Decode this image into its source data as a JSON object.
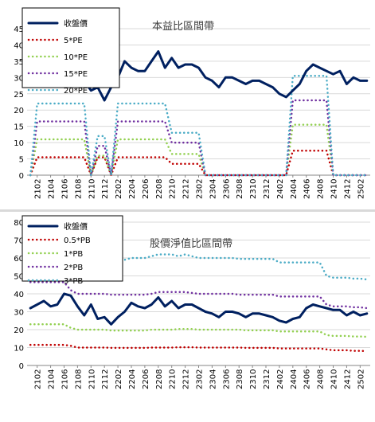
{
  "chart_data": [
    {
      "type": "line",
      "title": "本益比區間帶",
      "ylim": [
        0,
        45
      ],
      "yticks": [
        0,
        5,
        10,
        15,
        20,
        25,
        30,
        35,
        40,
        45
      ],
      "grid": true,
      "legend": "top-left",
      "x": [
        "2101",
        "2102",
        "2103",
        "2104",
        "2105",
        "2106",
        "2107",
        "2108",
        "2109",
        "2110",
        "2111",
        "2112",
        "2201",
        "2202",
        "2203",
        "2204",
        "2205",
        "2206",
        "2207",
        "2208",
        "2209",
        "2210",
        "2211",
        "2212",
        "2301",
        "2302",
        "2303",
        "2304",
        "2305",
        "2306",
        "2307",
        "2308",
        "2309",
        "2310",
        "2311",
        "2312",
        "2401",
        "2402",
        "2403",
        "2404",
        "2405",
        "2406",
        "2407",
        "2408",
        "2409",
        "2410",
        "2411",
        "2412",
        "2501",
        "2502",
        "2503"
      ],
      "xtick_labels": [
        "2102",
        "2104",
        "2106",
        "2108",
        "2110",
        "2112",
        "2202",
        "2204",
        "2206",
        "2208",
        "2210",
        "2212",
        "2302",
        "2304",
        "2306",
        "2308",
        "2310",
        "2312",
        "2402",
        "2404",
        "2406",
        "2408",
        "2410",
        "2412",
        "2502"
      ],
      "series": [
        {
          "name": "收盤價",
          "color": "#002060",
          "width": 3,
          "dash": "",
          "values": [
            30,
            31,
            33,
            31,
            31,
            33,
            38,
            33,
            29,
            26,
            27,
            23,
            27,
            30,
            35,
            33,
            32,
            32,
            35,
            38,
            33,
            36,
            33,
            34,
            34,
            33,
            30,
            29,
            27,
            30,
            30,
            29,
            28,
            29,
            29,
            28,
            27,
            25,
            24,
            26,
            28,
            32,
            34,
            33,
            32,
            31,
            32,
            28,
            30,
            29,
            29
          ]
        },
        {
          "name": "5*PE",
          "color": "#c00000",
          "width": 2.5,
          "dash": "0.1 5",
          "values": [
            0,
            5.5,
            5.5,
            5.5,
            5.5,
            5.5,
            5.5,
            5.5,
            5.5,
            0,
            5.5,
            5.5,
            0,
            5.5,
            5.5,
            5.5,
            5.5,
            5.5,
            5.5,
            5.5,
            5.5,
            3.5,
            3.5,
            3.5,
            3.5,
            3.5,
            0,
            0,
            0,
            0,
            0,
            0,
            0,
            0,
            0,
            0,
            0,
            0,
            0,
            7.5,
            7.5,
            7.5,
            7.5,
            7.5,
            7.5,
            0,
            0,
            0,
            0,
            0,
            0
          ]
        },
        {
          "name": "10*PE",
          "color": "#92d050",
          "width": 2.5,
          "dash": "0.1 5",
          "values": [
            0,
            11,
            11,
            11,
            11,
            11,
            11,
            11,
            11,
            0,
            6,
            6,
            0,
            11,
            11,
            11,
            11,
            11,
            11,
            11,
            11,
            6.5,
            6.5,
            6.5,
            6.5,
            6.5,
            0,
            0,
            0,
            0,
            0,
            0,
            0,
            0,
            0,
            0,
            0,
            0,
            0,
            15.5,
            15.5,
            15.5,
            15.5,
            15.5,
            15.5,
            0,
            0,
            0,
            0,
            0,
            0
          ]
        },
        {
          "name": "15*PE",
          "color": "#7030a0",
          "width": 2.5,
          "dash": "0.1 5",
          "values": [
            0,
            16.5,
            16.5,
            16.5,
            16.5,
            16.5,
            16.5,
            16.5,
            16.5,
            0,
            9,
            9,
            0,
            16.5,
            16.5,
            16.5,
            16.5,
            16.5,
            16.5,
            16.5,
            16.5,
            10,
            10,
            10,
            10,
            10,
            0,
            0,
            0,
            0,
            0,
            0,
            0,
            0,
            0,
            0,
            0,
            0,
            0,
            23,
            23,
            23,
            23,
            23,
            23,
            0,
            0,
            0,
            0,
            0,
            0
          ]
        },
        {
          "name": "20*PE",
          "color": "#4bacc6",
          "width": 2.5,
          "dash": "0.1 5",
          "values": [
            0,
            22,
            22,
            22,
            22,
            22,
            22,
            22,
            22,
            0,
            12,
            12,
            0,
            22,
            22,
            22,
            22,
            22,
            22,
            22,
            22,
            13,
            13,
            13,
            13,
            13,
            0,
            0,
            0,
            0,
            0,
            0,
            0,
            0,
            0,
            0,
            0,
            0,
            0,
            30.5,
            30.5,
            30.5,
            30.5,
            30.5,
            30.5,
            0,
            0,
            0,
            0,
            0,
            0
          ]
        }
      ]
    },
    {
      "type": "line",
      "title": "股價淨值比區間帶",
      "ylim": [
        0,
        80
      ],
      "yticks": [
        0,
        10,
        20,
        30,
        40,
        50,
        60,
        70,
        80
      ],
      "grid": true,
      "legend": "top-left",
      "x": [
        "2101",
        "2102",
        "2103",
        "2104",
        "2105",
        "2106",
        "2107",
        "2108",
        "2109",
        "2110",
        "2111",
        "2112",
        "2201",
        "2202",
        "2203",
        "2204",
        "2205",
        "2206",
        "2207",
        "2208",
        "2209",
        "2210",
        "2211",
        "2212",
        "2301",
        "2302",
        "2303",
        "2304",
        "2305",
        "2306",
        "2307",
        "2308",
        "2309",
        "2310",
        "2311",
        "2312",
        "2401",
        "2402",
        "2403",
        "2404",
        "2405",
        "2406",
        "2407",
        "2408",
        "2409",
        "2410",
        "2411",
        "2412",
        "2501",
        "2502",
        "2503"
      ],
      "xtick_labels": [
        "2102",
        "2104",
        "2106",
        "2108",
        "2110",
        "2112",
        "2202",
        "2204",
        "2206",
        "2208",
        "2210",
        "2212",
        "2302",
        "2304",
        "2306",
        "2308",
        "2310",
        "2312",
        "2402",
        "2404",
        "2406",
        "2408",
        "2410",
        "2412",
        "2502"
      ],
      "series": [
        {
          "name": "收盤價",
          "color": "#002060",
          "width": 3,
          "dash": "",
          "values": [
            32,
            34,
            36,
            33,
            34,
            40,
            39,
            33,
            28,
            34,
            26,
            27,
            23,
            27,
            30,
            35,
            33,
            32,
            34,
            38,
            33,
            36,
            32,
            34,
            34,
            32,
            30,
            29,
            27,
            30,
            30,
            29,
            27,
            29,
            29,
            28,
            27,
            25,
            24,
            26,
            27,
            32,
            34,
            33,
            32,
            31,
            31,
            28,
            30,
            28,
            29
          ]
        },
        {
          "name": "0.5*PB",
          "color": "#c00000",
          "width": 2.5,
          "dash": "0.1 5",
          "values": [
            11.5,
            11.5,
            11.5,
            11.5,
            11.5,
            11.5,
            11,
            10,
            10,
            10,
            10,
            10,
            9.8,
            9.8,
            9.8,
            9.8,
            9.8,
            9.8,
            10,
            10,
            10,
            10,
            10.2,
            10.2,
            10.2,
            10,
            10,
            10,
            10,
            10,
            10,
            10,
            9.8,
            9.8,
            9.8,
            9.8,
            9.8,
            9.5,
            9.5,
            9.5,
            9.5,
            9.5,
            9.5,
            9.5,
            9,
            8.5,
            8.5,
            8.5,
            8.2,
            8.2,
            8
          ]
        },
        {
          "name": "1*PB",
          "color": "#92d050",
          "width": 2.5,
          "dash": "0.1 5",
          "values": [
            23,
            23,
            23,
            23,
            23,
            23,
            21,
            20,
            20,
            20,
            20,
            20,
            19.5,
            19.5,
            19.5,
            19.5,
            19.5,
            19.5,
            20,
            20,
            20,
            20,
            20.3,
            20.3,
            20.3,
            20,
            20,
            20,
            20,
            20,
            20,
            20,
            19.6,
            19.6,
            19.6,
            19.6,
            19.6,
            19,
            19,
            19,
            19,
            19,
            19,
            19,
            17,
            16.5,
            16.5,
            16.5,
            16.2,
            16.2,
            16
          ]
        },
        {
          "name": "2*PB",
          "color": "#7030a0",
          "width": 2.5,
          "dash": "0.1 5",
          "values": [
            46.5,
            46.5,
            46.5,
            46.5,
            46.5,
            46.5,
            42,
            40,
            40,
            40,
            40,
            40,
            39.5,
            39.5,
            39.5,
            39.5,
            39.5,
            39.5,
            40,
            41,
            41,
            41,
            41,
            41,
            40.5,
            40,
            40,
            40,
            40,
            40,
            40,
            39.5,
            39.5,
            39.5,
            39.5,
            39.5,
            39.5,
            38.5,
            38.5,
            38.5,
            38.5,
            38.5,
            38.5,
            38.5,
            34,
            33,
            33,
            33,
            32.5,
            32.5,
            32
          ]
        },
        {
          "name": "3*PB",
          "color": "#4bacc6",
          "width": 2.5,
          "dash": "0.1 5",
          "values": [
            64,
            64,
            64,
            65,
            64,
            65,
            64,
            62,
            60,
            60,
            60,
            60,
            59,
            59,
            59,
            60,
            60,
            60,
            61,
            62,
            62,
            62,
            61,
            62,
            61,
            60,
            60,
            60,
            60,
            60,
            60,
            59.5,
            59.5,
            59.5,
            59.5,
            59.5,
            59.5,
            57.5,
            57.5,
            57.5,
            57.5,
            57.5,
            57.5,
            57.5,
            50,
            49,
            49,
            49,
            48.5,
            48.5,
            48
          ]
        }
      ]
    }
  ]
}
